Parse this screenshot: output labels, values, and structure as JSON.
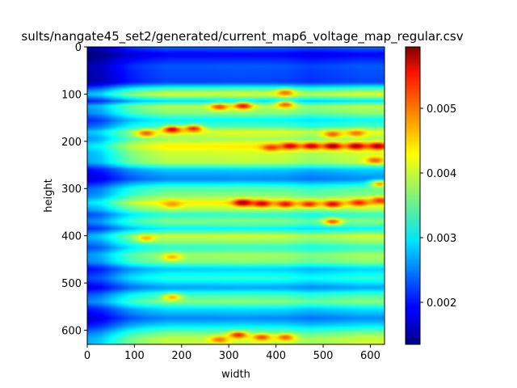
{
  "chart_data": {
    "type": "heatmap",
    "title": "sults/nangate45_set2/generated/current_map6_voltage_map_regular.csv",
    "xlabel": "width",
    "ylabel": "height",
    "xlim": [
      0,
      630
    ],
    "ylim": [
      630,
      0
    ],
    "x_ticks": [
      0,
      100,
      200,
      300,
      400,
      500,
      600
    ],
    "y_ticks": [
      0,
      100,
      200,
      300,
      400,
      500,
      600
    ],
    "colormap": "jet",
    "colorbar": {
      "range": [
        0.00135,
        0.00595
      ],
      "ticks": [
        0.002,
        0.003,
        0.004,
        0.005
      ],
      "tick_labels": [
        "0.002",
        "0.003",
        "0.004",
        "0.005"
      ]
    },
    "grid": false,
    "row_profile": {
      "y": [
        0,
        15,
        40,
        75,
        90,
        100,
        115,
        125,
        140,
        155,
        170,
        180,
        195,
        210,
        225,
        245,
        260,
        280,
        300,
        315,
        330,
        345,
        355,
        370,
        385,
        400,
        410,
        425,
        440,
        455,
        470,
        490,
        510,
        525,
        540,
        555,
        575,
        590,
        605,
        615,
        630
      ],
      "value": [
        0.0023,
        0.0018,
        0.0022,
        0.0021,
        0.0033,
        0.0039,
        0.0028,
        0.0037,
        0.0035,
        0.0029,
        0.0033,
        0.0039,
        0.0036,
        0.0041,
        0.0038,
        0.0037,
        0.0027,
        0.0024,
        0.0033,
        0.0035,
        0.0041,
        0.0036,
        0.0031,
        0.0035,
        0.0029,
        0.0038,
        0.0036,
        0.0031,
        0.0036,
        0.0035,
        0.0027,
        0.0031,
        0.0025,
        0.0032,
        0.0035,
        0.0028,
        0.0024,
        0.0028,
        0.0034,
        0.0037,
        0.0038
      ]
    },
    "column_profile": {
      "x": [
        0,
        30,
        60,
        90,
        120,
        170,
        250,
        330,
        420,
        470,
        520,
        580,
        630
      ],
      "factor": [
        0.72,
        0.76,
        0.86,
        0.95,
        1.0,
        1.05,
        1.05,
        1.06,
        1.05,
        1.01,
        1.03,
        1.06,
        1.06
      ]
    },
    "hotspots": [
      {
        "x": 330,
        "y": 330,
        "value": 0.0059
      },
      {
        "x": 370,
        "y": 332,
        "value": 0.0056
      },
      {
        "x": 420,
        "y": 333,
        "value": 0.0054
      },
      {
        "x": 470,
        "y": 333,
        "value": 0.0053
      },
      {
        "x": 520,
        "y": 333,
        "value": 0.0055
      },
      {
        "x": 575,
        "y": 330,
        "value": 0.0053
      },
      {
        "x": 620,
        "y": 325,
        "value": 0.0052
      },
      {
        "x": 520,
        "y": 210,
        "value": 0.0059
      },
      {
        "x": 475,
        "y": 210,
        "value": 0.0057
      },
      {
        "x": 430,
        "y": 210,
        "value": 0.0056
      },
      {
        "x": 570,
        "y": 210,
        "value": 0.0058
      },
      {
        "x": 615,
        "y": 210,
        "value": 0.0058
      },
      {
        "x": 390,
        "y": 213,
        "value": 0.0052
      },
      {
        "x": 180,
        "y": 175,
        "value": 0.0056
      },
      {
        "x": 225,
        "y": 173,
        "value": 0.0053
      },
      {
        "x": 125,
        "y": 183,
        "value": 0.005
      },
      {
        "x": 330,
        "y": 125,
        "value": 0.0054
      },
      {
        "x": 280,
        "y": 127,
        "value": 0.0051
      },
      {
        "x": 420,
        "y": 122,
        "value": 0.005
      },
      {
        "x": 420,
        "y": 97,
        "value": 0.0049
      },
      {
        "x": 520,
        "y": 185,
        "value": 0.005
      },
      {
        "x": 570,
        "y": 183,
        "value": 0.0049
      },
      {
        "x": 610,
        "y": 240,
        "value": 0.005
      },
      {
        "x": 520,
        "y": 370,
        "value": 0.005
      },
      {
        "x": 320,
        "y": 610,
        "value": 0.0053
      },
      {
        "x": 370,
        "y": 615,
        "value": 0.0051
      },
      {
        "x": 420,
        "y": 615,
        "value": 0.005
      },
      {
        "x": 280,
        "y": 620,
        "value": 0.0049
      },
      {
        "x": 180,
        "y": 530,
        "value": 0.0046
      },
      {
        "x": 180,
        "y": 445,
        "value": 0.0046
      },
      {
        "x": 125,
        "y": 405,
        "value": 0.0046
      },
      {
        "x": 180,
        "y": 333,
        "value": 0.0047
      },
      {
        "x": 620,
        "y": 290,
        "value": 0.0047
      }
    ]
  }
}
